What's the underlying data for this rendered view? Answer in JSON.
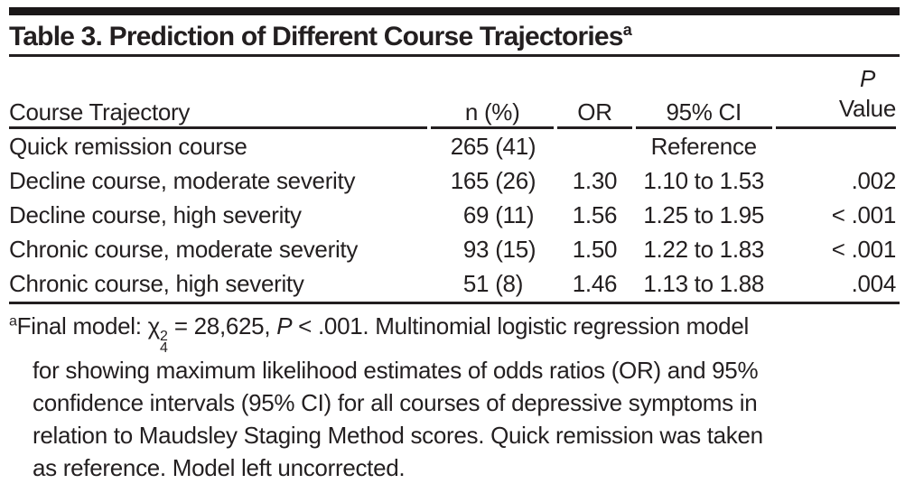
{
  "table": {
    "title": "Table 3. Prediction of Different Course Trajectories",
    "title_footnote_marker": "a",
    "columns": {
      "trajectory": "Course Trajectory",
      "n": "n (%)",
      "or": "OR",
      "ci": "95% CI",
      "p_line1": "P",
      "p_line2": "Value"
    },
    "rows": [
      {
        "trajectory": "Quick remission course",
        "n_count": "265",
        "n_pct": "(41)",
        "or": "",
        "ci": "Reference",
        "p": ""
      },
      {
        "trajectory": "Decline course, moderate severity",
        "n_count": "165",
        "n_pct": "(26)",
        "or": "1.30",
        "ci": "1.10 to 1.53",
        "p": ".002"
      },
      {
        "trajectory": "Decline course, high severity",
        "n_count": "69",
        "n_pct": "(11)",
        "or": "1.56",
        "ci": "1.25 to 1.95",
        "p": "< .001"
      },
      {
        "trajectory": "Chronic course, moderate severity",
        "n_count": "93",
        "n_pct": "(15)",
        "or": "1.50",
        "ci": "1.22 to 1.83",
        "p": "< .001"
      },
      {
        "trajectory": "Chronic course, high severity",
        "n_count": "51",
        "n_pct": "(8)",
        "or": "1.46",
        "ci": "1.13 to 1.88",
        "p": ".004"
      }
    ]
  },
  "footnote": {
    "marker": "a",
    "l1_pre": "Final model: ",
    "chi": "χ",
    "chi_sup": "2",
    "chi_sub": "4",
    "l1_mid": " = 28,625, ",
    "p_italic": "P",
    "l1_post": " < .001. Multinomial logistic regression model",
    "l2": "for showing maximum likelihood estimates of odds ratios (OR) and 95%",
    "l3": "confidence intervals (95% CI) for all courses of depressive symptoms in",
    "l4": "relation to Maudsley Staging Method scores. Quick remission was taken",
    "l5": "as reference. Model left uncorrected."
  },
  "colors": {
    "text": "#231f20",
    "rule": "#231f20",
    "background": "#ffffff"
  }
}
